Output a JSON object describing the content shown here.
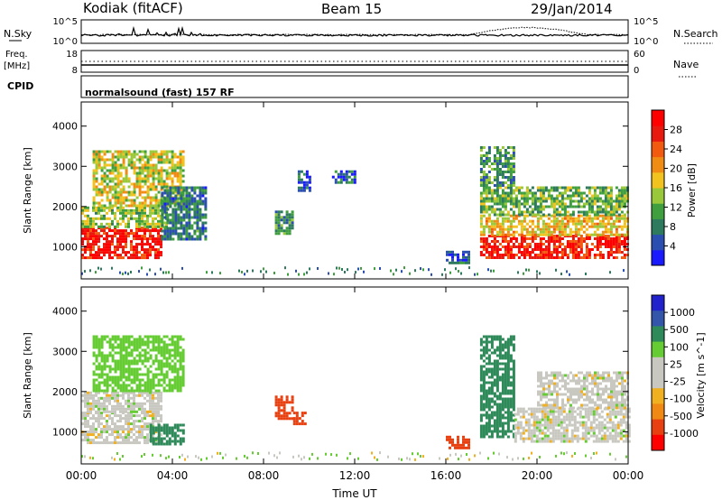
{
  "header": {
    "site": "Kodiak (fitACF)",
    "beam": "Beam 15",
    "date": "29/Jan/2014"
  },
  "panels": {
    "nsky": {
      "left_label": "N.Sky",
      "right_label": "N.Search",
      "tick_top": "10^5",
      "tick_bottom": "10^0",
      "rtick_top": "10^5",
      "rtick_bottom": "10^0"
    },
    "freq": {
      "label_line1": "Freq.",
      "label_line2": "[MHz]",
      "tick_top": "18",
      "tick_bottom": "8",
      "right_label": "Nave",
      "rtick_top": "60",
      "rtick_bottom": "0"
    },
    "cpid": {
      "label": "CPID",
      "text": "normalsound (fast) 157 RF"
    }
  },
  "colors": {
    "power": [
      "#1a1aff",
      "#2a4fb0",
      "#2e7a5e",
      "#3f9f3f",
      "#99c93a",
      "#f2c21f",
      "#f08c14",
      "#f25a10",
      "#e81a0f",
      "#ff0000"
    ],
    "velocity": [
      "#2222cc",
      "#3355aa",
      "#2f8a5a",
      "#66cc33",
      "#c8c8c0",
      "#c8c8c0",
      "#f0b020",
      "#f08814",
      "#e84010",
      "#ff0000"
    ]
  },
  "chart_data": [
    {
      "type": "heatmap",
      "name": "power",
      "ylabel": "Slant Range [km]",
      "yticks": [
        "1000",
        "2000",
        "3000",
        "4000"
      ],
      "ylim": [
        200,
        4600
      ],
      "xlim": [
        0,
        24
      ],
      "colorbar_label": "Power [dB]",
      "colorbar_ticks": [
        "4",
        "8",
        "12",
        "16",
        "20",
        "24",
        "28"
      ],
      "color_range": [
        0,
        32
      ],
      "regions": [
        {
          "t0": 0.0,
          "t1": 3.5,
          "r0": 750,
          "r1": 1500,
          "v": 28
        },
        {
          "t0": 0.0,
          "t1": 3.8,
          "r0": 1500,
          "r1": 2000,
          "v": 14
        },
        {
          "t0": 0.5,
          "t1": 4.5,
          "r0": 2000,
          "r1": 3400,
          "v": 16
        },
        {
          "t0": 3.5,
          "t1": 5.5,
          "r0": 1200,
          "r1": 2500,
          "v": 8
        },
        {
          "t0": 8.5,
          "t1": 9.3,
          "r0": 1300,
          "r1": 1900,
          "v": 10
        },
        {
          "t0": 9.5,
          "t1": 10.0,
          "r0": 2400,
          "r1": 2900,
          "v": 6
        },
        {
          "t0": 11.0,
          "t1": 12.0,
          "r0": 2600,
          "r1": 2900,
          "v": 6
        },
        {
          "t0": 16.0,
          "t1": 17.0,
          "r0": 600,
          "r1": 900,
          "v": 6
        },
        {
          "t0": 17.5,
          "t1": 24.0,
          "r0": 750,
          "r1": 1300,
          "v": 28
        },
        {
          "t0": 17.5,
          "t1": 24.0,
          "r0": 1300,
          "r1": 1800,
          "v": 18
        },
        {
          "t0": 17.5,
          "t1": 24.0,
          "r0": 1800,
          "r1": 2500,
          "v": 12
        },
        {
          "t0": 17.5,
          "t1": 19.0,
          "r0": 2500,
          "r1": 3500,
          "v": 10
        }
      ]
    },
    {
      "type": "heatmap",
      "name": "velocity",
      "ylabel": "Slant Range [km]",
      "yticks": [
        "1000",
        "2000",
        "3000",
        "4000"
      ],
      "ylim": [
        200,
        4600
      ],
      "xlim": [
        0,
        24
      ],
      "xlabel": "Time UT",
      "xticks": [
        "00:00",
        "04:00",
        "08:00",
        "12:00",
        "16:00",
        "20:00",
        "00:00"
      ],
      "colorbar_label": "Velocity [m s^-1]",
      "colorbar_ticks": [
        "1000",
        "500",
        "100",
        "25",
        "-25",
        "-100",
        "-500",
        "-1000"
      ],
      "regions": [
        {
          "t0": 0.0,
          "t1": 3.5,
          "r0": 750,
          "r1": 1500,
          "v": 0
        },
        {
          "t0": 0.0,
          "t1": 3.5,
          "r0": 1500,
          "r1": 2000,
          "v": 0
        },
        {
          "t0": 0.5,
          "t1": 4.5,
          "r0": 2000,
          "r1": 3400,
          "v": 60
        },
        {
          "t0": 3.0,
          "t1": 4.5,
          "r0": 700,
          "r1": 1200,
          "v": 150
        },
        {
          "t0": 8.5,
          "t1": 9.3,
          "r0": 1300,
          "r1": 1900,
          "v": -400
        },
        {
          "t0": 9.3,
          "t1": 9.8,
          "r0": 1200,
          "r1": 1500,
          "v": -150
        },
        {
          "t0": 16.0,
          "t1": 17.0,
          "r0": 600,
          "r1": 900,
          "v": -150
        },
        {
          "t0": 17.5,
          "t1": 19.0,
          "r0": 900,
          "r1": 3400,
          "v": 150
        },
        {
          "t0": 19.0,
          "t1": 24.0,
          "r0": 750,
          "r1": 1600,
          "v": 0
        },
        {
          "t0": 20.0,
          "t1": 24.0,
          "r0": 1600,
          "r1": 2500,
          "v": 0
        }
      ]
    }
  ]
}
